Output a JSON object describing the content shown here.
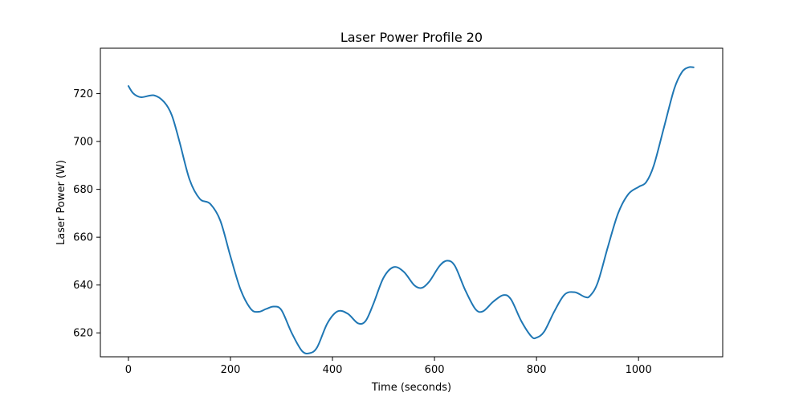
{
  "chart_data": {
    "type": "line",
    "title": "Laser Power Profile 20",
    "xlabel": "Time (seconds)",
    "ylabel": "Laser Power (W)",
    "xlim": [
      -55,
      1165
    ],
    "ylim": [
      610,
      739
    ],
    "x_ticks": [
      0,
      200,
      400,
      600,
      800,
      1000
    ],
    "y_ticks": [
      620,
      640,
      660,
      680,
      700,
      720
    ],
    "grid": false,
    "legend": "none",
    "series": [
      {
        "color": "#1f77b4",
        "points": [
          [
            0,
            723.2
          ],
          [
            10,
            720.0
          ],
          [
            25,
            718.5
          ],
          [
            50,
            719.3
          ],
          [
            70,
            716.5
          ],
          [
            85,
            711.0
          ],
          [
            100,
            700.0
          ],
          [
            120,
            684.0
          ],
          [
            140,
            676.0
          ],
          [
            160,
            674.0
          ],
          [
            180,
            667.0
          ],
          [
            200,
            652.0
          ],
          [
            220,
            638.0
          ],
          [
            240,
            630.0
          ],
          [
            255,
            628.8
          ],
          [
            270,
            630.0
          ],
          [
            285,
            631.0
          ],
          [
            300,
            629.5
          ],
          [
            320,
            620.0
          ],
          [
            340,
            612.5
          ],
          [
            355,
            611.5
          ],
          [
            370,
            614.0
          ],
          [
            390,
            624.0
          ],
          [
            410,
            629.0
          ],
          [
            430,
            628.0
          ],
          [
            450,
            624.0
          ],
          [
            465,
            625.0
          ],
          [
            480,
            632.0
          ],
          [
            500,
            643.0
          ],
          [
            520,
            647.5
          ],
          [
            540,
            645.5
          ],
          [
            560,
            640.0
          ],
          [
            575,
            638.8
          ],
          [
            590,
            641.5
          ],
          [
            610,
            648.0
          ],
          [
            625,
            650.2
          ],
          [
            640,
            648.0
          ],
          [
            660,
            638.0
          ],
          [
            680,
            630.0
          ],
          [
            695,
            629.0
          ],
          [
            715,
            633.0
          ],
          [
            735,
            635.8
          ],
          [
            750,
            634.0
          ],
          [
            770,
            625.0
          ],
          [
            790,
            618.5
          ],
          [
            800,
            618.0
          ],
          [
            815,
            620.5
          ],
          [
            835,
            629.0
          ],
          [
            855,
            636.0
          ],
          [
            875,
            637.0
          ],
          [
            895,
            635.0
          ],
          [
            905,
            635.5
          ],
          [
            920,
            641.0
          ],
          [
            940,
            656.0
          ],
          [
            960,
            670.0
          ],
          [
            980,
            678.0
          ],
          [
            1000,
            681.0
          ],
          [
            1015,
            683.0
          ],
          [
            1030,
            690.0
          ],
          [
            1050,
            706.0
          ],
          [
            1070,
            722.0
          ],
          [
            1085,
            729.0
          ],
          [
            1098,
            731.0
          ],
          [
            1108,
            731.0
          ]
        ]
      }
    ]
  }
}
